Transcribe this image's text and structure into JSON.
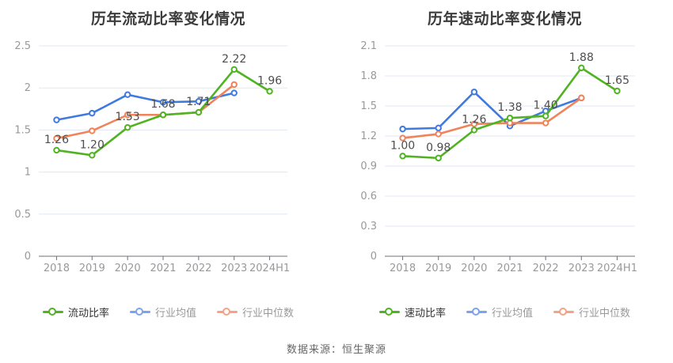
{
  "page": {
    "source_text": "数据来源：恒生聚源"
  },
  "colors": {
    "background": "#ffffff",
    "gridline": "#e0e7f3",
    "axis_line": "#6e7079",
    "tick_label": "#999999",
    "data_label": "#4d4d4d",
    "title": "#3c3c3c",
    "legend_label_primary": "#333333",
    "legend_label_secondary": "#999999",
    "series_green": "#4fb322",
    "series_blue": "#3e7ae0",
    "series_orange": "#f0835a"
  },
  "chart_data": [
    {
      "type": "line",
      "title": "历年流动比率变化情况",
      "xlabel": "",
      "ylabel": "",
      "categories": [
        "2018",
        "2019",
        "2020",
        "2021",
        "2022",
        "2023",
        "2024H1"
      ],
      "ylim": [
        0,
        2.5
      ],
      "grid": true,
      "legend_position": "bottom",
      "yticks": [
        {
          "value": 0,
          "label": "0"
        },
        {
          "value": 0.5,
          "label": "0.5"
        },
        {
          "value": 1,
          "label": "1"
        },
        {
          "value": 1.5,
          "label": "1.5"
        },
        {
          "value": 2,
          "label": "2"
        },
        {
          "value": 2.5,
          "label": "2.5"
        }
      ],
      "series": [
        {
          "name": "流动比率",
          "color": "#4fb322",
          "legend_color": "#4fb322",
          "marker": "hollow-circle",
          "show_labels": true,
          "values": [
            1.26,
            1.2,
            1.53,
            1.68,
            1.71,
            2.22,
            1.96
          ],
          "labels": [
            "1.26",
            "1.20",
            "1.53",
            "1.68",
            "1.71",
            "2.22",
            "1.96"
          ]
        },
        {
          "name": "行业均值",
          "color": "#3e7ae0",
          "legend_color": "#7aa4f0",
          "marker": "hollow-circle",
          "show_labels": false,
          "values": [
            1.62,
            1.7,
            1.92,
            1.83,
            1.84,
            1.94
          ],
          "labels": []
        },
        {
          "name": "行业中位数",
          "color": "#f0835a",
          "legend_color": "#f5a285",
          "marker": "hollow-circle",
          "show_labels": false,
          "values": [
            1.4,
            1.49,
            1.68,
            1.68,
            1.71,
            2.04
          ],
          "labels": []
        }
      ]
    },
    {
      "type": "line",
      "title": "历年速动比率变化情况",
      "xlabel": "",
      "ylabel": "",
      "categories": [
        "2018",
        "2019",
        "2020",
        "2021",
        "2022",
        "2023",
        "2024H1"
      ],
      "ylim": [
        0,
        2.1
      ],
      "grid": true,
      "legend_position": "bottom",
      "yticks": [
        {
          "value": 0,
          "label": "0"
        },
        {
          "value": 0.3,
          "label": "0.3"
        },
        {
          "value": 0.6,
          "label": "0.6"
        },
        {
          "value": 0.9,
          "label": "0.9"
        },
        {
          "value": 1.2,
          "label": "1.2"
        },
        {
          "value": 1.5,
          "label": "1.5"
        },
        {
          "value": 1.8,
          "label": "1.8"
        },
        {
          "value": 2.1,
          "label": "2.1"
        }
      ],
      "series": [
        {
          "name": "速动比率",
          "color": "#4fb322",
          "legend_color": "#4fb322",
          "marker": "hollow-circle",
          "show_labels": true,
          "values": [
            1.0,
            0.98,
            1.26,
            1.38,
            1.4,
            1.88,
            1.65
          ],
          "labels": [
            "1.00",
            "0.98",
            "1.26",
            "1.38",
            "1.40",
            "1.88",
            "1.65"
          ]
        },
        {
          "name": "行业均值",
          "color": "#3e7ae0",
          "legend_color": "#7aa4f0",
          "marker": "hollow-circle",
          "show_labels": false,
          "values": [
            1.27,
            1.28,
            1.64,
            1.3,
            1.45,
            1.58
          ],
          "labels": []
        },
        {
          "name": "行业中位数",
          "color": "#f0835a",
          "legend_color": "#f5a285",
          "marker": "hollow-circle",
          "show_labels": false,
          "values": [
            1.18,
            1.22,
            1.32,
            1.33,
            1.33,
            1.58
          ],
          "labels": []
        }
      ]
    }
  ]
}
